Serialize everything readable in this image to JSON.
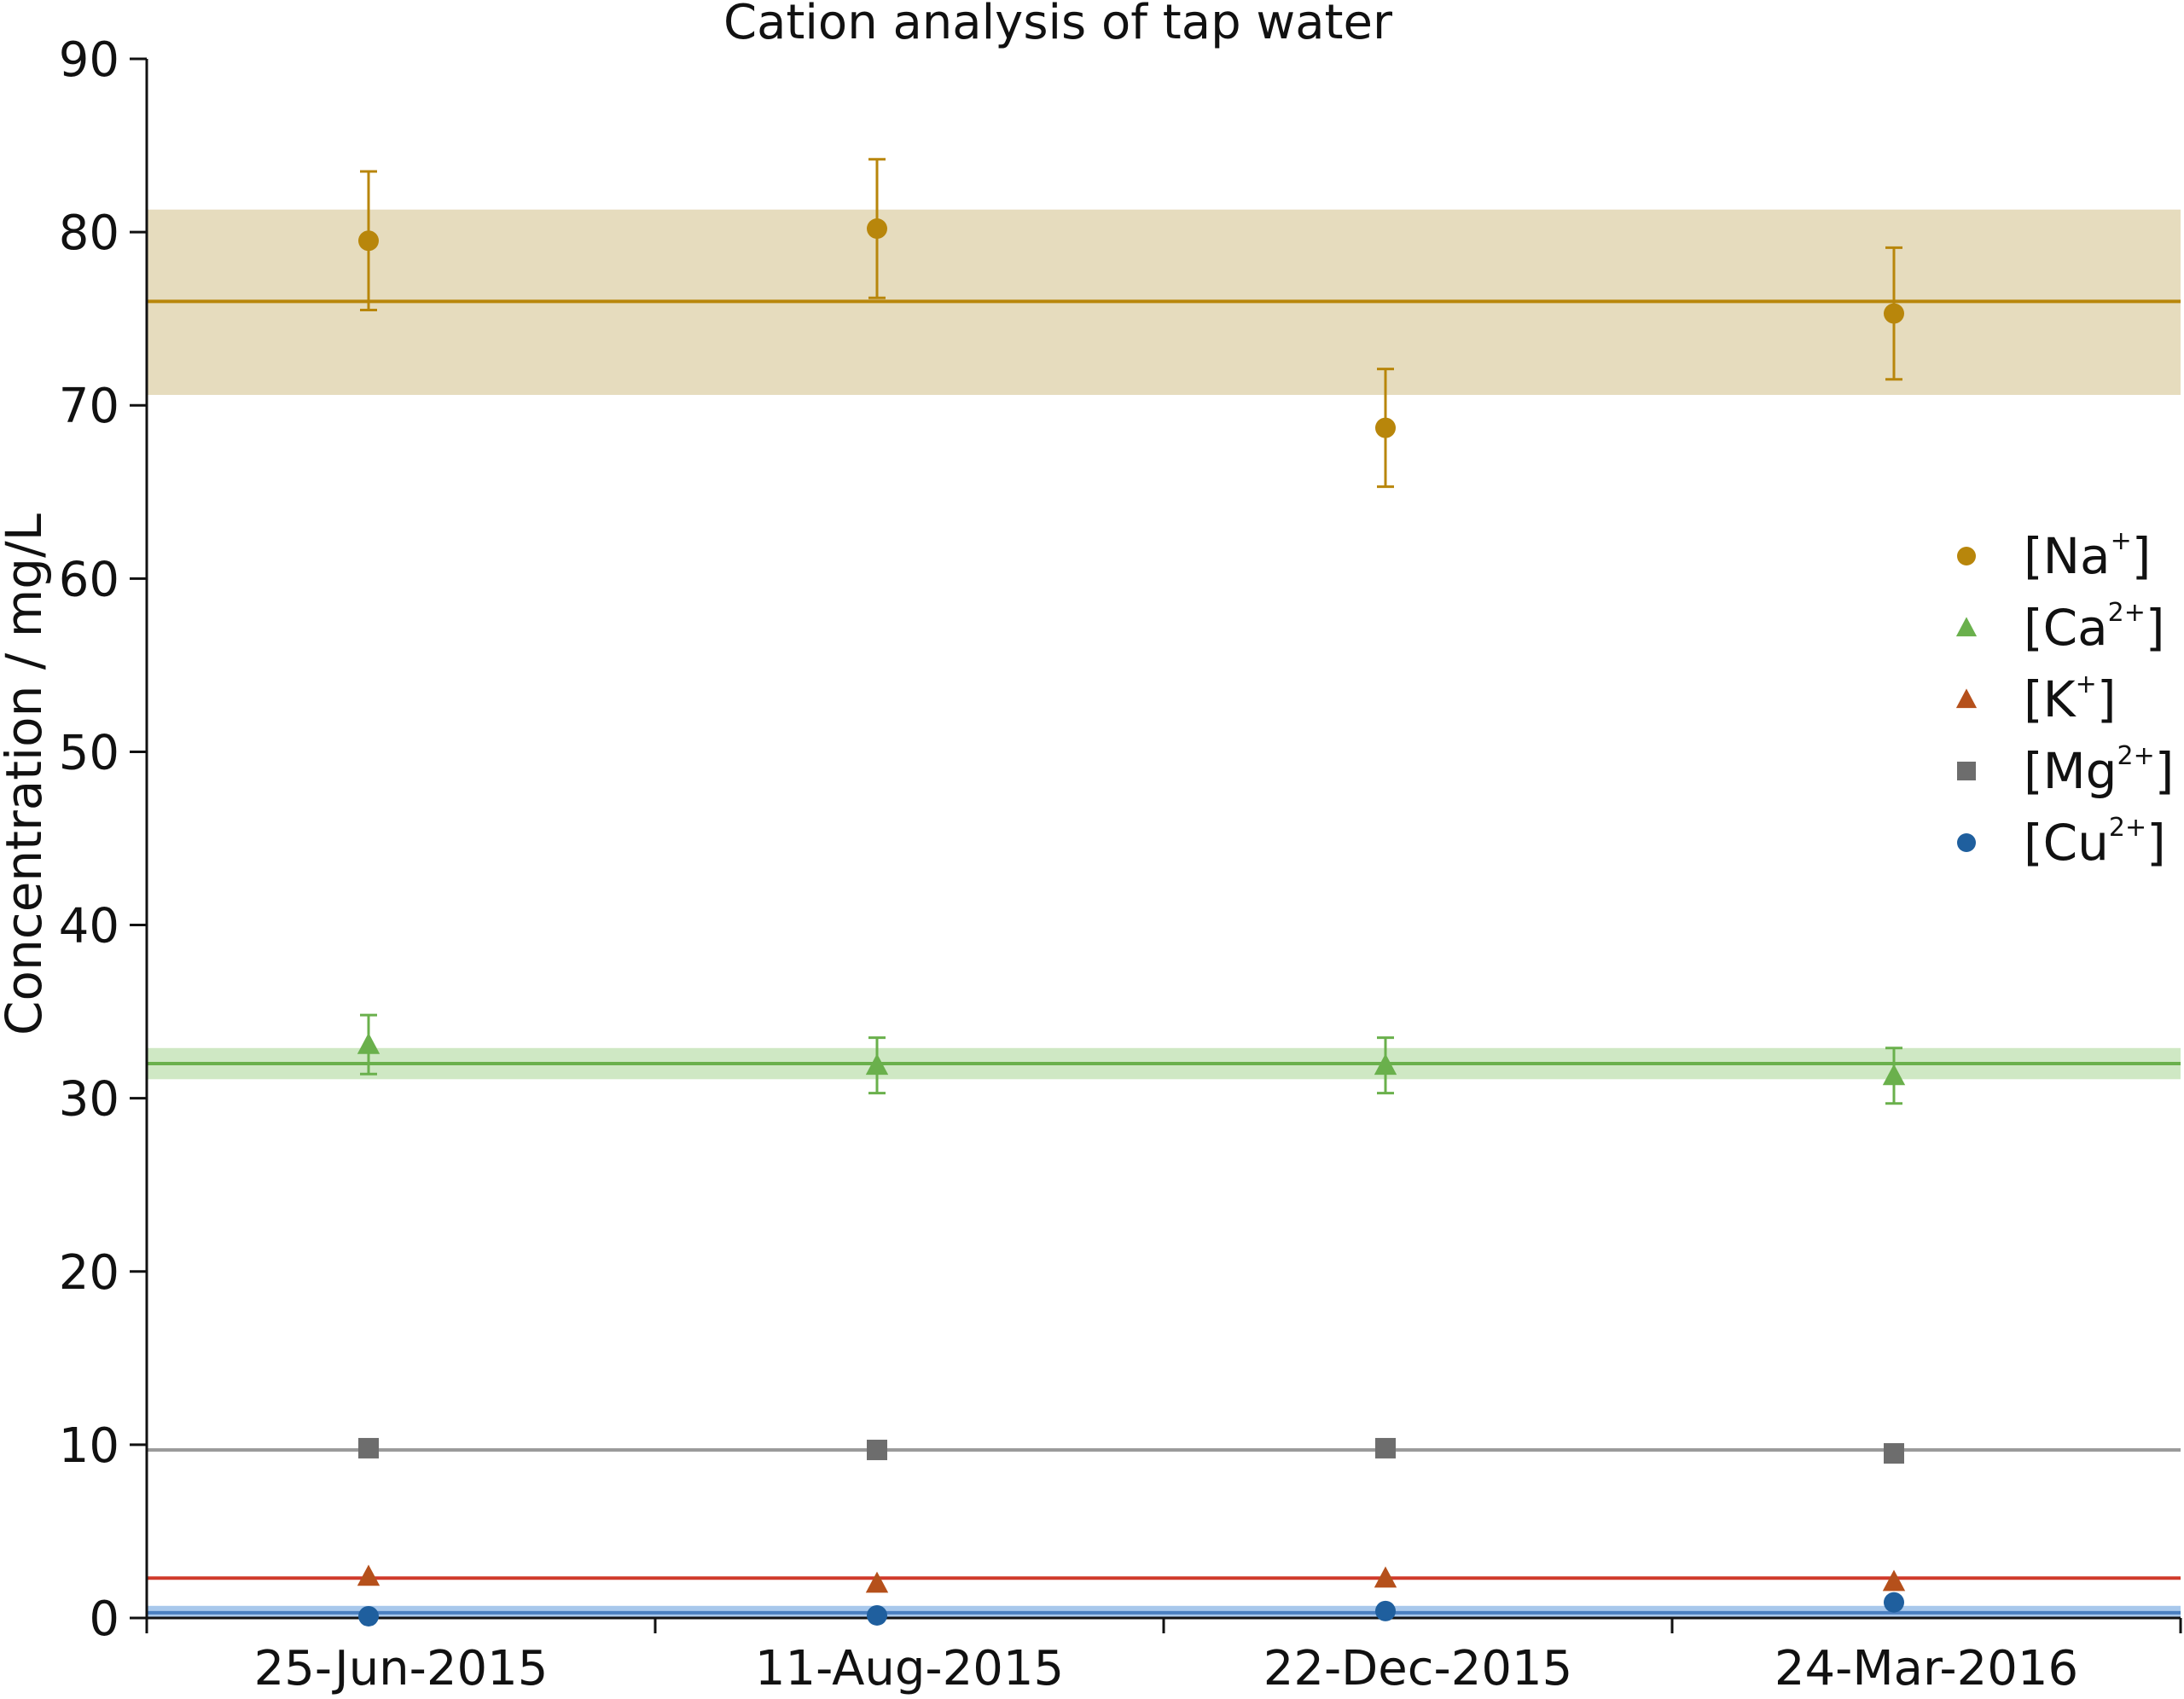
{
  "chart_data": {
    "type": "scatter",
    "title": "Cation analysis of tap water",
    "xlabel": "",
    "ylabel": "Concentration / mg/L",
    "ylim": [
      0,
      90
    ],
    "yticks": [
      0,
      10,
      20,
      30,
      40,
      50,
      60,
      70,
      80,
      90
    ],
    "categories": [
      "25-Jun-2015",
      "11-Aug-2015",
      "22-Dec-2015",
      "24-Mar-2016"
    ],
    "grid": false,
    "legend_position": "right",
    "series": [
      {
        "name": "[Na+]",
        "label": "[Na",
        "superscript": "+",
        "marker": "circle",
        "color": "#b8860b",
        "values": [
          79.5,
          80.2,
          68.7,
          75.3
        ],
        "errors": [
          4.0,
          4.0,
          3.4,
          3.8
        ],
        "mean": 76.0,
        "band": [
          70.6,
          81.3
        ],
        "band_color": "#e6dcbe"
      },
      {
        "name": "[Ca2+]",
        "label": "[Ca",
        "superscript": "2+",
        "marker": "triangle",
        "color": "#6ab04c",
        "values": [
          33.1,
          31.9,
          31.9,
          31.3
        ],
        "errors": [
          1.7,
          1.6,
          1.6,
          1.6
        ],
        "mean": 32.0,
        "band": [
          31.1,
          32.9
        ],
        "band_color": "#cfe8c4"
      },
      {
        "name": "[K+]",
        "label": "[K",
        "superscript": "+",
        "marker": "triangle",
        "color": "#b5501b",
        "values": [
          2.4,
          2.0,
          2.3,
          2.1
        ],
        "errors": [
          0,
          0,
          0,
          0
        ],
        "mean": 2.3,
        "line_color": "#d03a2a"
      },
      {
        "name": "[Mg2+]",
        "label": "[Mg",
        "superscript": "2+",
        "marker": "square",
        "color": "#6d6d6d",
        "values": [
          9.8,
          9.7,
          9.8,
          9.5
        ],
        "errors": [
          0,
          0,
          0,
          0
        ],
        "mean": 9.7,
        "line_color": "#9a9a9a"
      },
      {
        "name": "[Cu2+]",
        "label": "[Cu",
        "superscript": "2+",
        "marker": "circle",
        "color": "#1f5f9e",
        "values": [
          0.1,
          0.15,
          0.4,
          0.9
        ],
        "errors": [
          0,
          0,
          0,
          0
        ],
        "mean": 0.3,
        "band": [
          0.0,
          0.7
        ],
        "band_color": "#a8c8ec",
        "line_color": "#4a7fc0"
      }
    ]
  }
}
